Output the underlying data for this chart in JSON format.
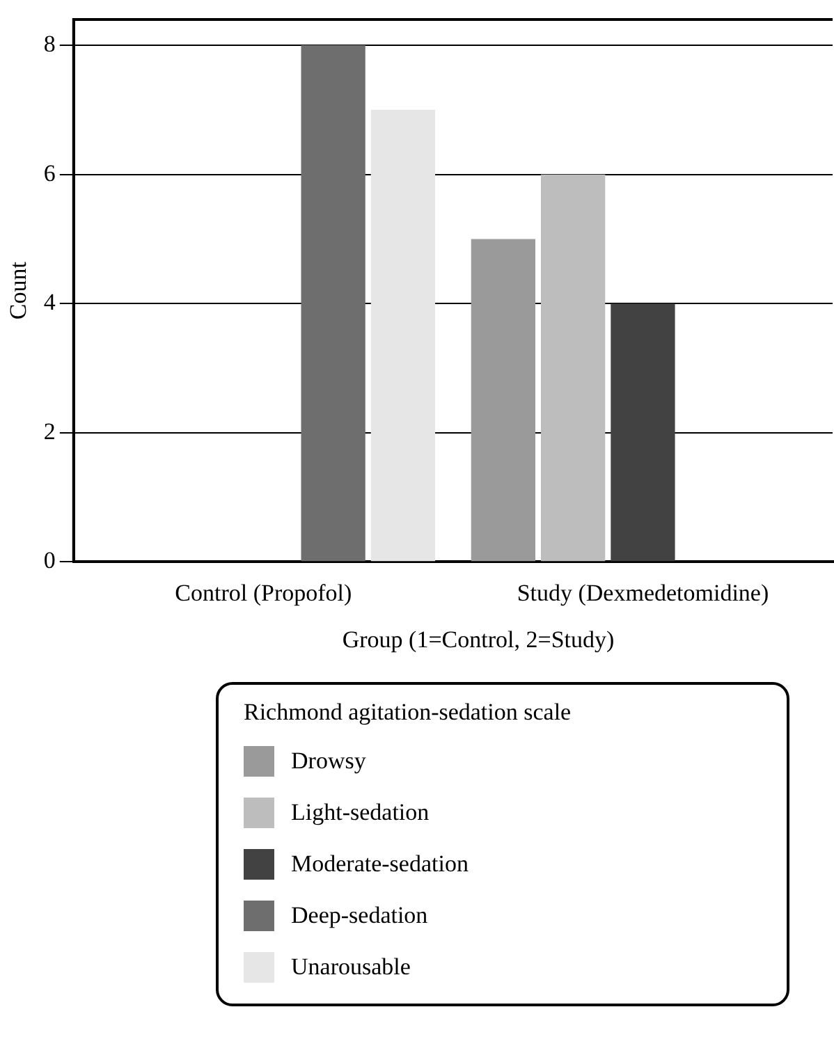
{
  "chart_data": {
    "type": "bar",
    "xlabel": "Group (1=Control, 2=Study)",
    "ylabel": "Count",
    "legend_title": "Richmond agitation-sedation scale",
    "categories": [
      "Control (Propofol)",
      "Study (Dexmedetomidine)"
    ],
    "series": [
      {
        "name": "Drowsy",
        "color": "#9a9a9a",
        "values": [
          null,
          5
        ]
      },
      {
        "name": "Light-sedation",
        "color": "#bdbdbd",
        "values": [
          null,
          6
        ]
      },
      {
        "name": "Moderate-sedation",
        "color": "#424242",
        "values": [
          null,
          4
        ]
      },
      {
        "name": "Deep-sedation",
        "color": "#6e6e6e",
        "values": [
          8,
          null
        ]
      },
      {
        "name": "Unarousable",
        "color": "#e6e6e6",
        "values": [
          7,
          null
        ]
      }
    ],
    "ylim": [
      0,
      8.4
    ],
    "yticks": [
      0,
      2,
      4,
      6,
      8
    ],
    "grid": "y",
    "legend": "bottom"
  }
}
